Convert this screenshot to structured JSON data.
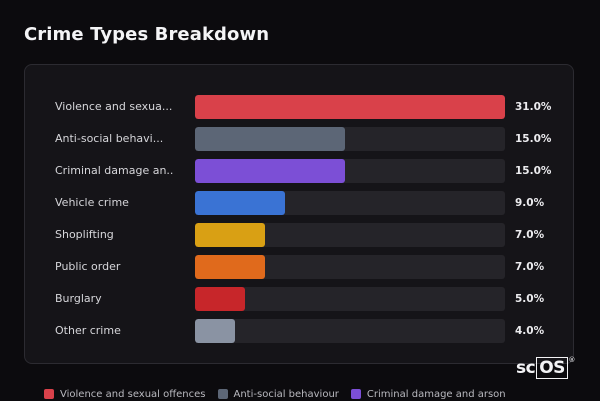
{
  "title": "Crime Types Breakdown",
  "brand": {
    "prefix": "sc",
    "boxed": "OS",
    "mark": "®"
  },
  "chart_data": {
    "type": "bar",
    "orientation": "horizontal",
    "title": "Crime Types Breakdown",
    "categories": [
      "Violence and sexual offences",
      "Anti-social behaviour",
      "Criminal damage and arson",
      "Vehicle crime",
      "Shoplifting",
      "Public order",
      "Burglary",
      "Other crime"
    ],
    "display_labels": [
      "Violence and sexua...",
      "Anti-social behavi...",
      "Criminal damage an...",
      "Vehicle crime",
      "Shoplifting",
      "Public order",
      "Burglary",
      "Other crime"
    ],
    "values": [
      31.0,
      15.0,
      15.0,
      9.0,
      7.0,
      7.0,
      5.0,
      4.0
    ],
    "value_labels": [
      "31.0%",
      "15.0%",
      "15.0%",
      "9.0%",
      "7.0%",
      "7.0%",
      "5.0%",
      "4.0%"
    ],
    "colors": [
      "#d9414a",
      "#5c6676",
      "#7c4fd6",
      "#3a73d4",
      "#d9a014",
      "#e06a1c",
      "#c7262a",
      "#8a93a3"
    ],
    "xlim": [
      0,
      31
    ],
    "legend": {
      "placement": "bottom",
      "entries": [
        "Violence and sexual offences",
        "Anti-social behaviour",
        "Criminal damage and arson"
      ]
    }
  }
}
